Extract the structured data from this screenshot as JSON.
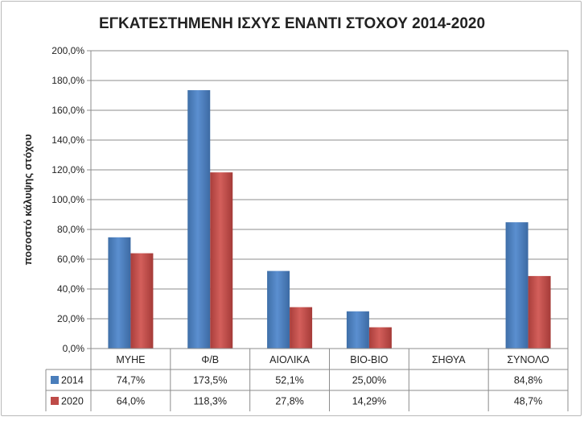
{
  "chart_data": {
    "type": "bar",
    "title": "ΕΓΚΑΤΕΣΤΗΜΕΝΗ ΙΣΧΥΣ ΕΝΑΝΤΙ ΣΤΟΧΟΥ 2014-2020",
    "ylabel": "ποσοστό κάλυψης στόχου",
    "xlabel": "",
    "ylim": [
      0,
      200
    ],
    "yticks": [
      0,
      20,
      40,
      60,
      80,
      100,
      120,
      140,
      160,
      180,
      200
    ],
    "ytick_labels": [
      "0,0%",
      "20,0%",
      "40,0%",
      "60,0%",
      "80,0%",
      "100,0%",
      "120,0%",
      "140,0%",
      "160,0%",
      "180,0%",
      "200,0%"
    ],
    "grid": true,
    "legend": "data-table-left",
    "categories": [
      "ΜΥΗΕ",
      "Φ/Β",
      "ΑΙΟΛΙΚΑ",
      "ΒΙΟ-ΒΙΟ",
      "ΣΗΘΥΑ",
      "ΣΥΝΟΛΟ"
    ],
    "series": [
      {
        "name": "2014",
        "color": "#4a7ebb",
        "values": [
          74.7,
          173.5,
          52.1,
          25.0,
          null,
          84.8
        ],
        "labels": [
          "74,7%",
          "173,5%",
          "52,1%",
          "25,00%",
          "",
          "84,8%"
        ]
      },
      {
        "name": "2020",
        "color": "#be4b48",
        "values": [
          64.0,
          118.3,
          27.8,
          14.29,
          null,
          48.7
        ],
        "labels": [
          "64,0%",
          "118,3%",
          "27,8%",
          "14,29%",
          "",
          "48,7%"
        ]
      }
    ]
  }
}
